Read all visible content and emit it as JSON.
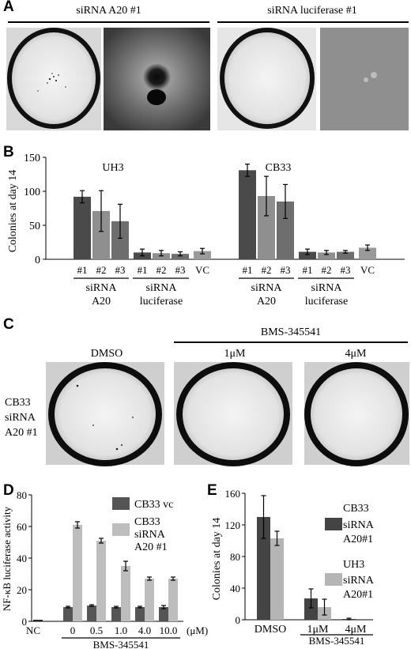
{
  "panel_letters": {
    "a": "A",
    "b": "B",
    "c": "C",
    "d": "D",
    "e": "E"
  },
  "panel_a": {
    "left_title": "siRNA A20 #1",
    "right_title": "siRNA luciferase #1"
  },
  "panel_c": {
    "row_label_line1": "CB33",
    "row_label_line2": "siRNA",
    "row_label_line3": "A20 #1",
    "dmso_label": "DMSO",
    "bms_label": "BMS-345541",
    "dose1": "1μM",
    "dose2": "4μM"
  },
  "chart_data": [
    {
      "id": "B",
      "type": "bar",
      "ylabel": "Colonies at day 14",
      "ylim": [
        0,
        150
      ],
      "yticks": [
        0,
        50,
        100,
        150
      ],
      "groups": [
        {
          "title": "UH3",
          "categories": [
            "#1",
            "#2",
            "#3",
            "#1",
            "#2",
            "#3",
            "VC"
          ],
          "values": [
            92,
            71,
            56,
            10,
            9,
            8,
            12
          ],
          "errors": [
            9,
            30,
            25,
            5,
            4,
            3,
            4
          ]
        },
        {
          "title": "CB33",
          "categories": [
            "#1",
            "#2",
            "#3",
            "#1",
            "#2",
            "#3",
            "VC"
          ],
          "values": [
            131,
            93,
            85,
            11,
            10,
            11,
            17
          ],
          "errors": [
            9,
            29,
            25,
            4,
            3,
            2,
            4
          ]
        }
      ],
      "group_labels": [
        {
          "line1": "siRNA",
          "line2": "A20"
        },
        {
          "line1": "siRNA",
          "line2": "luciferase"
        }
      ]
    },
    {
      "id": "D",
      "type": "bar",
      "ylabel": "NF-κB luciferase activity",
      "ylim": [
        0,
        80
      ],
      "yticks": [
        0,
        20,
        40,
        60,
        80
      ],
      "categories": [
        "NC",
        "0",
        "0.5",
        "1.0",
        "4.0",
        "10.0"
      ],
      "unit_label": "(μM)",
      "xlabel": "BMS-345541",
      "series": [
        {
          "name": "CB33 vc",
          "color": "#555555",
          "values": [
            1,
            9,
            10,
            9,
            9,
            9
          ],
          "errors": [
            0,
            0.5,
            0.5,
            0.5,
            0.5,
            1
          ]
        },
        {
          "name": "CB33 siRNA A20 #1",
          "color": "#bdbdbd",
          "values": [
            null,
            61,
            51,
            35,
            27,
            27
          ],
          "errors": [
            null,
            2,
            1.5,
            3,
            1,
            1
          ]
        }
      ],
      "legend": [
        "CB33 vc",
        "CB33",
        "siRNA",
        "A20 #1"
      ]
    },
    {
      "id": "E",
      "type": "bar",
      "ylabel": "Colonies at day 14",
      "ylim": [
        0,
        160
      ],
      "yticks": [
        0,
        40,
        80,
        120,
        160
      ],
      "categories": [
        "DMSO",
        "1μM",
        "4μM"
      ],
      "xlabel": "BMS-345541",
      "series": [
        {
          "name": "CB33 siRNA A20#1",
          "color": "#444444",
          "values": [
            130,
            27,
            1
          ],
          "errors": [
            27,
            12,
            1
          ]
        },
        {
          "name": "UH3 siRNA A20#1",
          "color": "#b5b5b5",
          "values": [
            103,
            16,
            0
          ],
          "errors": [
            9,
            10,
            0
          ]
        }
      ],
      "legend": [
        "CB33",
        "siRNA",
        "A20#1",
        "UH3",
        "siRNA",
        "A20#1"
      ]
    }
  ]
}
